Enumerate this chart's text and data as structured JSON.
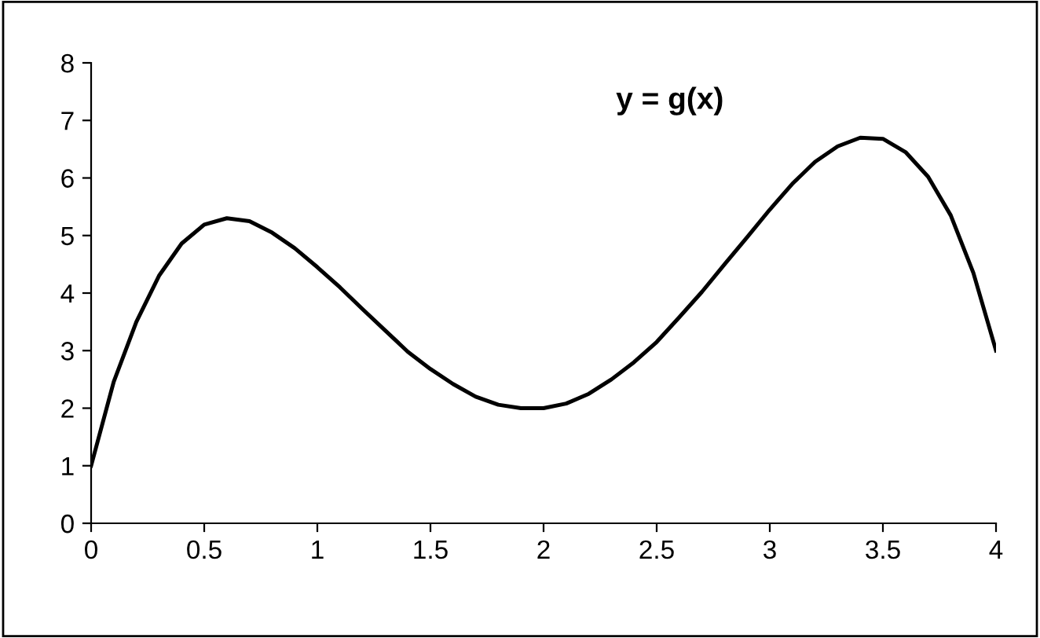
{
  "chart_data": {
    "type": "line",
    "x": [
      0,
      0.1,
      0.2,
      0.3,
      0.4,
      0.5,
      0.6,
      0.7,
      0.8,
      0.9,
      1.0,
      1.1,
      1.2,
      1.3,
      1.4,
      1.5,
      1.6,
      1.7,
      1.8,
      1.9,
      2.0,
      2.1,
      2.2,
      2.3,
      2.4,
      2.5,
      2.6,
      2.7,
      2.8,
      2.9,
      3.0,
      3.1,
      3.2,
      3.3,
      3.4,
      3.5,
      3.6,
      3.7,
      3.8,
      3.9,
      4.0
    ],
    "series": [
      {
        "color": "#000000",
        "values": [
          1.0,
          2.46,
          3.5,
          4.3,
          4.86,
          5.19,
          5.3,
          5.25,
          5.05,
          4.78,
          4.45,
          4.1,
          3.72,
          3.35,
          2.98,
          2.68,
          2.42,
          2.2,
          2.06,
          2.0,
          2.0,
          2.08,
          2.25,
          2.5,
          2.8,
          3.15,
          3.58,
          4.02,
          4.5,
          4.97,
          5.45,
          5.9,
          6.28,
          6.55,
          6.7,
          6.68,
          6.45,
          6.02,
          5.35,
          4.35,
          3.0
        ]
      }
    ],
    "annotations": [
      "y = g(x)"
    ],
    "xlim": [
      0,
      4
    ],
    "xticks": [
      0,
      0.5,
      1,
      1.5,
      2,
      2.5,
      3,
      3.5,
      4
    ],
    "ylim": [
      0,
      8
    ],
    "yticks": [
      0,
      1,
      2,
      3,
      4,
      5,
      6,
      7,
      8
    ],
    "grid": false,
    "legend": false,
    "marker": "none",
    "line_style": "solid"
  }
}
